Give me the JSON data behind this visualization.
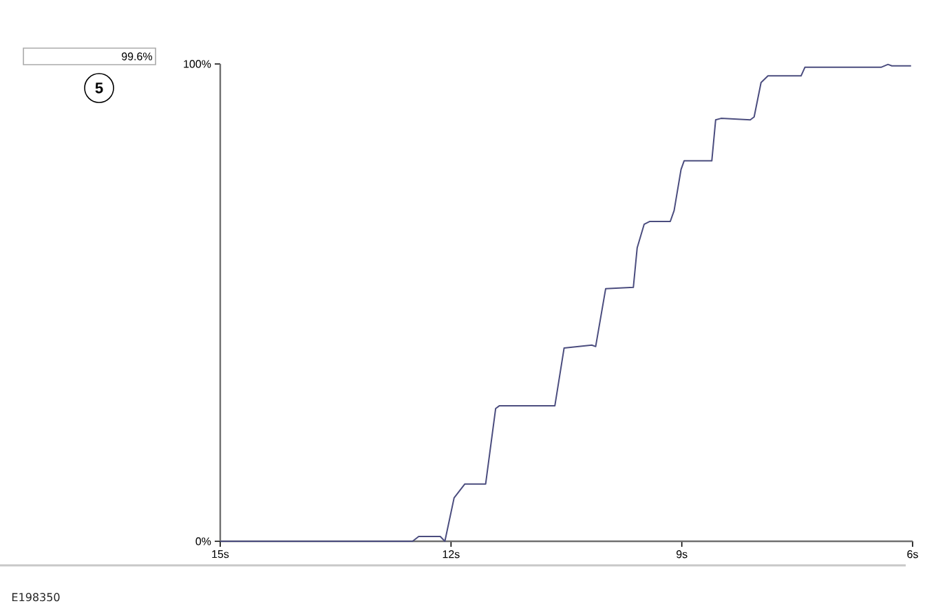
{
  "chart_data": {
    "type": "line",
    "x": [
      15,
      12.5,
      12.42,
      12.14,
      12.08,
      11.96,
      11.82,
      11.55,
      11.42,
      11.37,
      10.65,
      10.53,
      10.17,
      10.12,
      9.99,
      9.63,
      9.58,
      9.49,
      9.42,
      9.15,
      9.1,
      9.01,
      8.97,
      8.61,
      8.56,
      8.49,
      8.11,
      8.06,
      7.97,
      7.88,
      7.45,
      7.4,
      6.41,
      6.32,
      6.27,
      6.02
    ],
    "values": [
      0,
      0,
      1,
      1,
      0,
      9.1,
      12,
      12,
      27.8,
      28.4,
      28.4,
      40.5,
      41.1,
      40.8,
      52.9,
      53.2,
      61.5,
      66.4,
      67,
      67,
      69.3,
      77.9,
      79.7,
      79.7,
      88.3,
      88.6,
      88.3,
      88.9,
      96.1,
      97.5,
      97.5,
      99.3,
      99.3,
      99.9,
      99.6,
      99.6
    ],
    "color": "#4a4c7e",
    "line_style": "solid",
    "xlim": [
      15,
      6
    ],
    "xticks": [
      {
        "value": 15,
        "label": "15s"
      },
      {
        "value": 12,
        "label": "12s"
      },
      {
        "value": 9,
        "label": "9s"
      },
      {
        "value": 6,
        "label": "6s"
      }
    ],
    "ylim": [
      0,
      100
    ],
    "yticks": [
      {
        "value": 0,
        "label": "0%"
      },
      {
        "value": 100,
        "label": "100%"
      }
    ],
    "annotations": [
      "99.6%",
      "5",
      "E198350"
    ]
  }
}
